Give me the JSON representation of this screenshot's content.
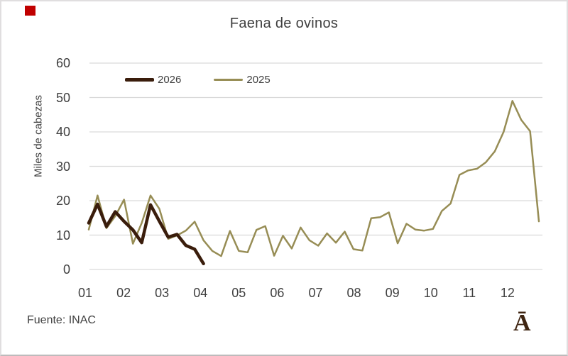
{
  "title": "Faena de ovinos",
  "source_note": "Fuente: INAC",
  "logo_glyph": "Ā",
  "corner_marker_color": "#c00000",
  "chart_data": {
    "type": "line",
    "title": "Faena de ovinos",
    "ylabel": "Miles de cabezas",
    "xlabel": "",
    "x_unit": "weekly points, axis labeled by month",
    "x_tick_labels": [
      "01",
      "02",
      "03",
      "04",
      "05",
      "06",
      "07",
      "08",
      "09",
      "10",
      "11",
      "12"
    ],
    "y_ticks": [
      0,
      10,
      20,
      30,
      40,
      50,
      60
    ],
    "ylim": [
      0,
      60
    ],
    "grid": "horizontal",
    "gridline_color": "#d9d9d9",
    "axis_text_color": "#404040",
    "legend_position": "inside-top-left",
    "series": [
      {
        "name": "2026",
        "color": "#3a1d0c",
        "stroke_width": 4.5,
        "values": [
          13.5,
          19.0,
          12.5,
          16.8,
          14.0,
          11.5,
          7.8,
          18.8,
          14.0,
          9.4,
          10.2,
          7.0,
          5.9,
          1.7
        ]
      },
      {
        "name": "2025",
        "color": "#978d55",
        "stroke_width": 2.5,
        "values": [
          11.6,
          21.5,
          12.0,
          15.5,
          20.3,
          7.5,
          13.5,
          21.5,
          17.6,
          8.9,
          9.9,
          11.3,
          13.9,
          8.5,
          5.4,
          3.9,
          11.2,
          5.4,
          5.0,
          11.5,
          12.6,
          4.0,
          9.8,
          6.1,
          12.2,
          8.5,
          6.9,
          10.5,
          7.8,
          11.0,
          5.9,
          5.5,
          14.9,
          15.2,
          16.6,
          7.6,
          13.3,
          11.6,
          11.3,
          11.8,
          17.0,
          19.2,
          27.5,
          28.8,
          29.3,
          31.2,
          34.3,
          40.0,
          49.0,
          43.5,
          40.2,
          14.0
        ]
      }
    ]
  }
}
